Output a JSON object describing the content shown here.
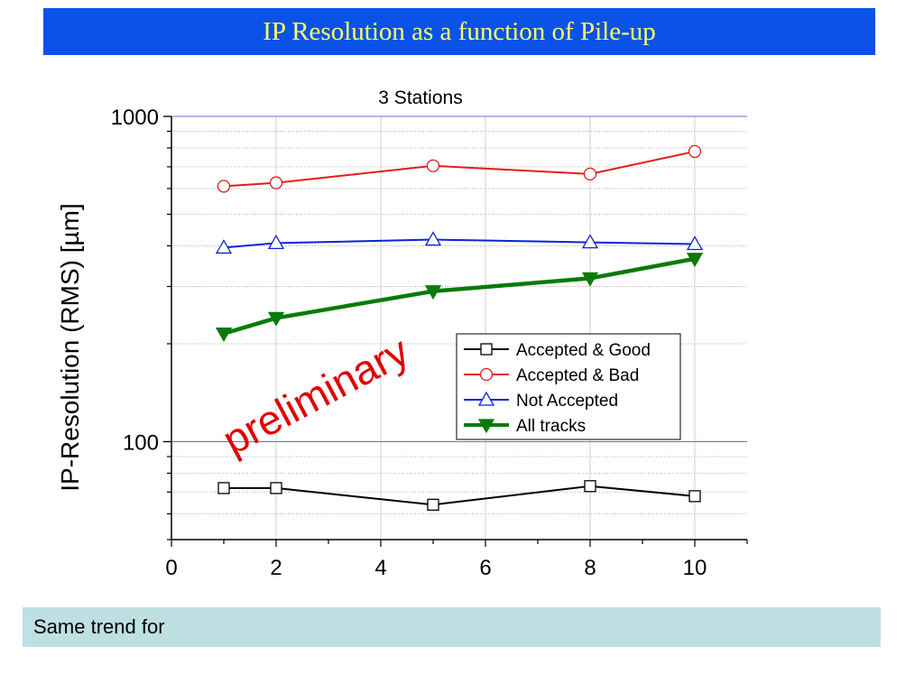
{
  "slide": {
    "title": "IP Resolution as a function of Pile-up",
    "footer_text": "Same trend for"
  },
  "watermark": {
    "text": "preliminary",
    "color": "#e00000"
  },
  "chart_data": {
    "type": "line",
    "title": "3 Stations",
    "xlabel": "",
    "ylabel": "IP-Resolution (RMS) [µm]",
    "xlim": [
      0,
      11
    ],
    "ylim": [
      50,
      1000
    ],
    "yscale": "log",
    "x_ticks": [
      0,
      2,
      4,
      6,
      8,
      10
    ],
    "y_ticks": [
      100,
      1000
    ],
    "grid": true,
    "legend_position": "center-right",
    "series": [
      {
        "name": "Accepted & Good",
        "color": "#000000",
        "marker": "square",
        "x": [
          1,
          2,
          5,
          8,
          10
        ],
        "y": [
          72,
          72,
          64,
          73,
          68
        ]
      },
      {
        "name": "Accepted & Bad",
        "color": "#e31a1c",
        "marker": "circle",
        "x": [
          1,
          2,
          5,
          8,
          10
        ],
        "y": [
          610,
          625,
          705,
          665,
          780
        ]
      },
      {
        "name": "Not Accepted",
        "color": "#0a24d6",
        "marker": "triangle-up",
        "x": [
          1,
          2,
          5,
          8,
          10
        ],
        "y": [
          395,
          408,
          418,
          410,
          405
        ]
      },
      {
        "name": "All tracks",
        "color": "#0a7a0a",
        "marker": "triangle-down",
        "x": [
          1,
          2,
          5,
          8,
          10
        ],
        "y": [
          215,
          240,
          290,
          318,
          365
        ]
      }
    ]
  }
}
